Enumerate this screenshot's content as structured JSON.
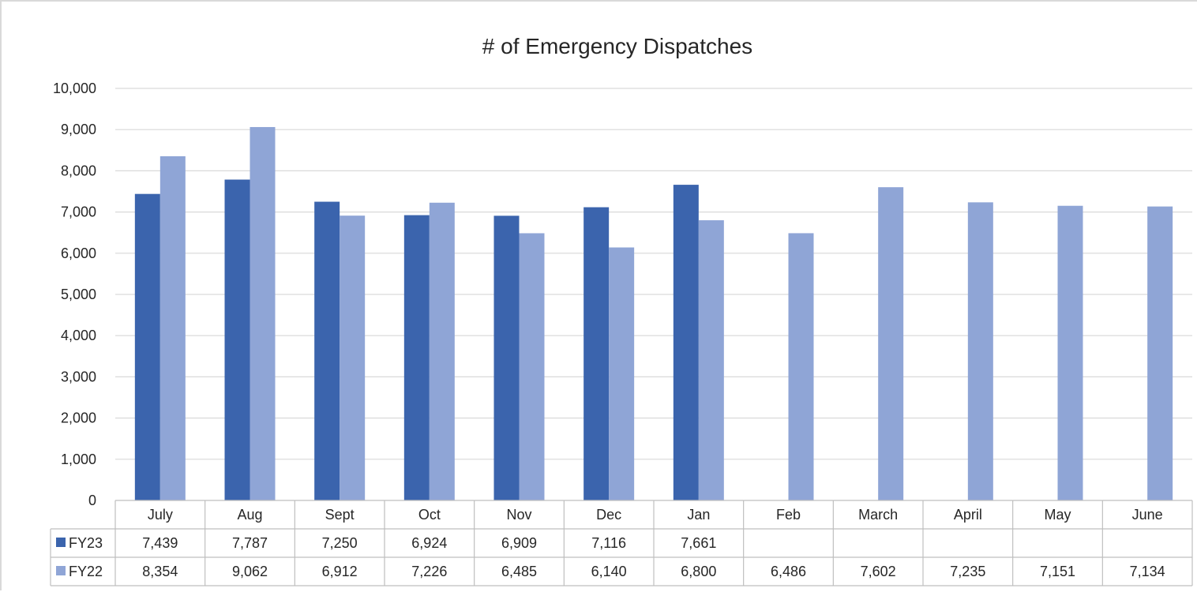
{
  "chart_data": {
    "type": "bar",
    "title": "# of Emergency Dispatches",
    "categories": [
      "July",
      "Aug",
      "Sept",
      "Oct",
      "Nov",
      "Dec",
      "Jan",
      "Feb",
      "March",
      "April",
      "May",
      "June"
    ],
    "series": [
      {
        "name": "FY23",
        "color": "#3b64ad",
        "values": [
          7439,
          7787,
          7250,
          6924,
          6909,
          7116,
          7661,
          null,
          null,
          null,
          null,
          null
        ],
        "labels": [
          "7,439",
          "7,787",
          "7,250",
          "6,924",
          "6,909",
          "7,116",
          "7,661",
          "",
          "",
          "",
          "",
          ""
        ]
      },
      {
        "name": "FY22",
        "color": "#8fa5d6",
        "values": [
          8354,
          9062,
          6912,
          7226,
          6485,
          6140,
          6800,
          6486,
          7602,
          7235,
          7151,
          7134
        ],
        "labels": [
          "8,354",
          "9,062",
          "6,912",
          "7,226",
          "6,485",
          "6,140",
          "6,800",
          "6,486",
          "7,602",
          "7,235",
          "7,151",
          "7,134"
        ]
      }
    ],
    "ylim": [
      0,
      10000
    ],
    "yticks": [
      "0",
      "1,000",
      "2,000",
      "3,000",
      "4,000",
      "5,000",
      "6,000",
      "7,000",
      "8,000",
      "9,000",
      "10,000"
    ],
    "grid": true,
    "legend": "data-table",
    "xlabel": "",
    "ylabel": ""
  }
}
